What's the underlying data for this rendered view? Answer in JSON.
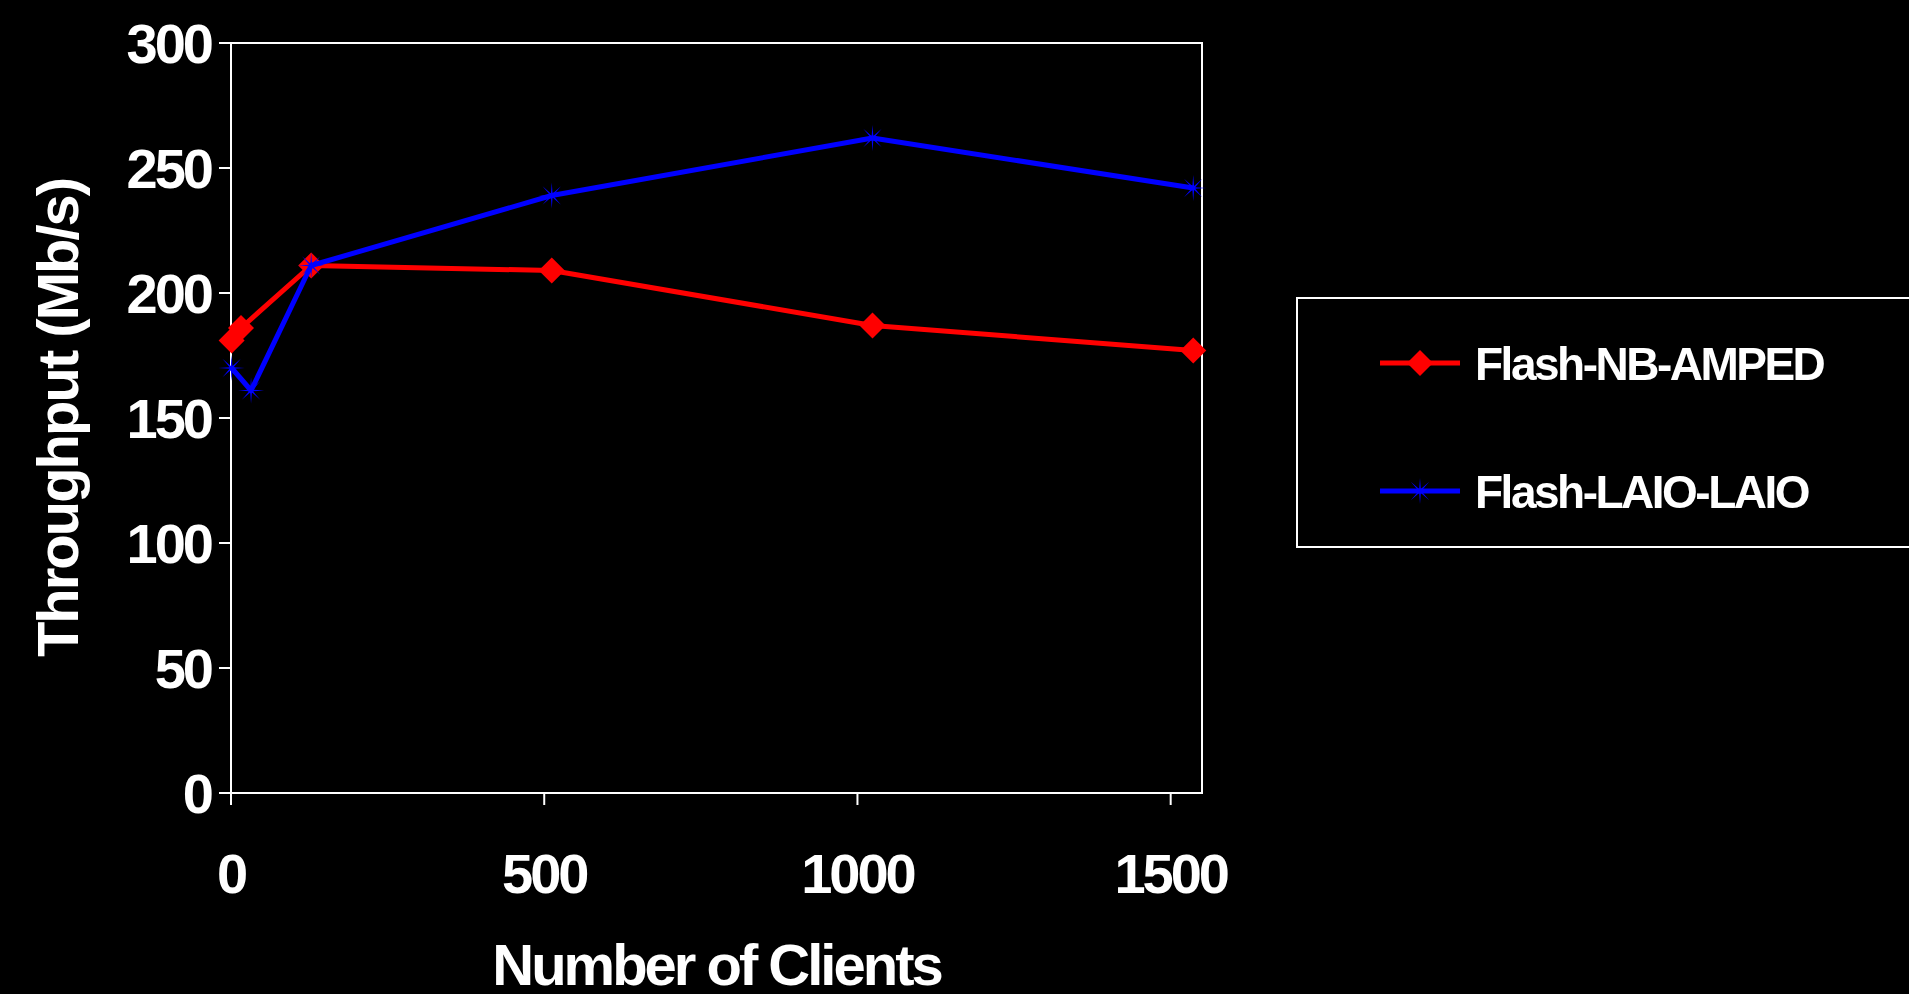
{
  "chart_data": {
    "type": "line",
    "xlabel": "Number of Clients",
    "ylabel": "Throughput (Mb/s)",
    "xlim": [
      0,
      1550
    ],
    "xticks": [
      0,
      500,
      1000,
      1500
    ],
    "ylim": [
      0,
      300
    ],
    "yticks": [
      0,
      50,
      100,
      150,
      200,
      250,
      300
    ],
    "grid": false,
    "legend": "right",
    "line_style": "solid",
    "series": [
      {
        "name": "Flash-NB-AMPED",
        "color": "#ff0000",
        "marker": "diamond",
        "x": [
          1,
          16,
          128,
          512,
          1024,
          1536
        ],
        "values": [
          181,
          186,
          211,
          209,
          187,
          177
        ]
      },
      {
        "name": "Flash-LAIO-LAIO",
        "color": "#0000ff",
        "marker": "cross",
        "x": [
          1,
          32,
          128,
          512,
          1024,
          1536
        ],
        "values": [
          170,
          161,
          211,
          239,
          262,
          242
        ]
      }
    ]
  }
}
